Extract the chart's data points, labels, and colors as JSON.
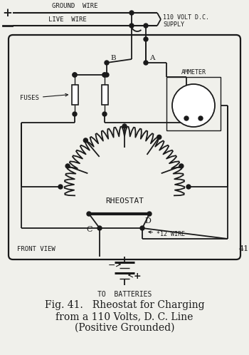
{
  "fig_width": 3.5,
  "fig_height": 4.98,
  "dpi": 100,
  "bg_color": "#f0f0eb",
  "line_color": "#1a1a1a",
  "title_lines": [
    "Fig. 41.   Rheostat for Charging",
    "from a 110 Volts, D. C. Line",
    "(Positive Grounded)"
  ],
  "title_fontsize": 10.0
}
